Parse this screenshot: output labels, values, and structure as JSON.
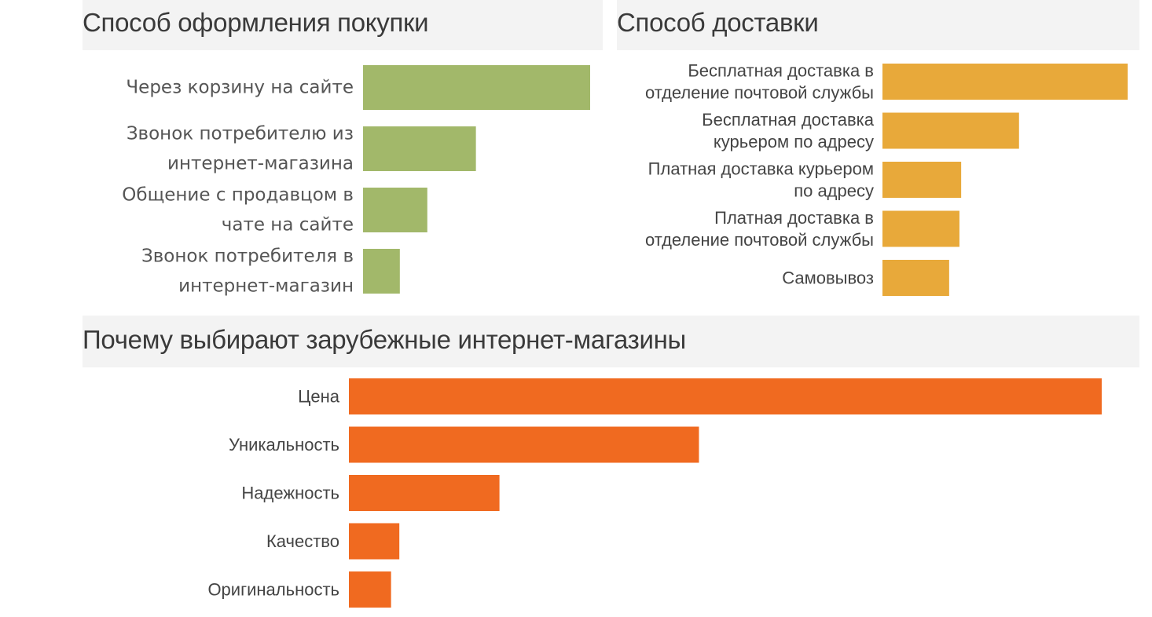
{
  "chart_data": [
    {
      "type": "bar",
      "orientation": "horizontal",
      "title": "Способ оформления покупки",
      "categories": [
        "Через корзину на сайте",
        "Звонок потребителю из интернет-магазина",
        "Общение с продавцом в чате на сайте",
        "Звонок потребителя в интернет-магазин"
      ],
      "label_lines": [
        [
          "Через корзину на сайте"
        ],
        [
          "Звонок потребителю из",
          "интернет-магазина"
        ],
        [
          "Общение с продавцом в",
          "чате на сайте"
        ],
        [
          "Звонок потребителя в",
          "интернет-магазин"
        ]
      ],
      "values": [
        100,
        49.7,
        28.3,
        16.2
      ],
      "xlim": [
        0,
        100
      ],
      "color": "#a2b86a",
      "xlabel": "",
      "ylabel": "",
      "grid": false
    },
    {
      "type": "bar",
      "orientation": "horizontal",
      "title": "Способ доставки",
      "categories": [
        "Бесплатная доставка в отделение почтовой службы",
        "Бесплатная доставка курьером по адресу",
        "Платная доставка курьером по адресу",
        "Платная доставка в отделение почтовой службы",
        "Самовывоз"
      ],
      "label_lines": [
        [
          "Бесплатная доставка в",
          "отделение почтовой службы"
        ],
        [
          "Бесплатная доставка",
          "курьером по адресу"
        ],
        [
          "Платная доставка курьером",
          "по адресу"
        ],
        [
          "Платная доставка в",
          "отделение почтовой службы"
        ],
        [
          "Самовывоз"
        ]
      ],
      "values": [
        100,
        55.7,
        32.1,
        31.4,
        27.2
      ],
      "xlim": [
        0,
        100
      ],
      "color": "#e8a93a",
      "xlabel": "",
      "ylabel": "",
      "grid": false
    },
    {
      "type": "bar",
      "orientation": "horizontal",
      "title": "Почему выбирают зарубежные интернет-магазины",
      "categories": [
        "Цена",
        "Уникальность",
        "Надежность",
        "Качество",
        "Оригинальность"
      ],
      "label_lines": [
        [
          "Цена"
        ],
        [
          "Уникальность"
        ],
        [
          "Надежность"
        ],
        [
          "Качество"
        ],
        [
          "Оригинальность"
        ]
      ],
      "values": [
        100,
        46.5,
        20,
        6.7,
        5.6
      ],
      "xlim": [
        0,
        100
      ],
      "color": "#f06a20",
      "xlabel": "",
      "ylabel": "",
      "grid": false
    }
  ]
}
